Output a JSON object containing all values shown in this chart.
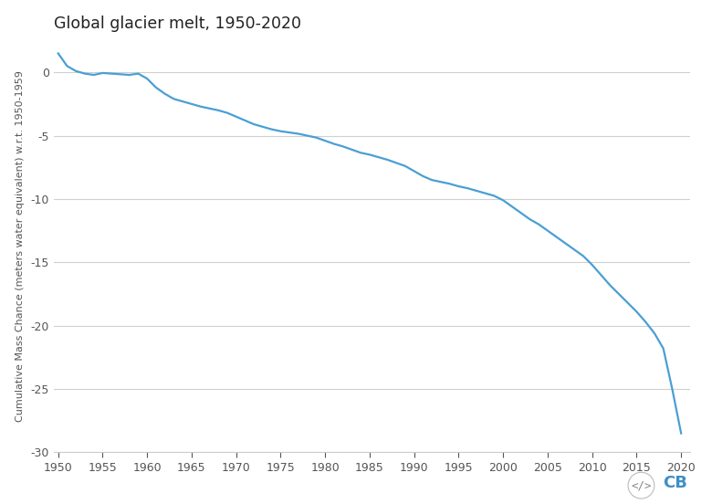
{
  "title": "Global glacier melt, 1950-2020",
  "xlabel": "",
  "ylabel": "Cumulative Mass Chance (meters water equivalent) w.r.t. 1950-1959",
  "line_color": "#4a9fd4",
  "background_color": "#ffffff",
  "grid_color": "#d0d0d0",
  "xlim": [
    1949.5,
    2021
  ],
  "ylim": [
    -30,
    2.5
  ],
  "xticks": [
    1950,
    1955,
    1960,
    1965,
    1970,
    1975,
    1980,
    1985,
    1990,
    1995,
    2000,
    2005,
    2010,
    2015,
    2020
  ],
  "yticks": [
    0,
    -5,
    -10,
    -15,
    -20,
    -25,
    -30
  ],
  "ytick_labels": [
    "0",
    "-5",
    "-10",
    "-15",
    "-20",
    "-25",
    "-30"
  ],
  "years": [
    1950,
    1951,
    1952,
    1953,
    1954,
    1955,
    1956,
    1957,
    1958,
    1959,
    1960,
    1961,
    1962,
    1963,
    1964,
    1965,
    1966,
    1967,
    1968,
    1969,
    1970,
    1971,
    1972,
    1973,
    1974,
    1975,
    1976,
    1977,
    1978,
    1979,
    1980,
    1981,
    1982,
    1983,
    1984,
    1985,
    1986,
    1987,
    1988,
    1989,
    1990,
    1991,
    1992,
    1993,
    1994,
    1995,
    1996,
    1997,
    1998,
    1999,
    2000,
    2001,
    2002,
    2003,
    2004,
    2005,
    2006,
    2007,
    2008,
    2009,
    2010,
    2011,
    2012,
    2013,
    2014,
    2015,
    2016,
    2017,
    2018,
    2019,
    2020
  ],
  "values": [
    1.5,
    0.5,
    0.1,
    -0.1,
    -0.2,
    -0.05,
    -0.1,
    -0.15,
    -0.2,
    -0.1,
    -0.5,
    -1.2,
    -1.7,
    -2.1,
    -2.3,
    -2.5,
    -2.7,
    -2.85,
    -3.0,
    -3.2,
    -3.5,
    -3.8,
    -4.1,
    -4.3,
    -4.5,
    -4.65,
    -4.75,
    -4.85,
    -5.0,
    -5.15,
    -5.4,
    -5.65,
    -5.85,
    -6.1,
    -6.35,
    -6.5,
    -6.7,
    -6.9,
    -7.15,
    -7.4,
    -7.8,
    -8.2,
    -8.5,
    -8.65,
    -8.8,
    -9.0,
    -9.15,
    -9.35,
    -9.55,
    -9.75,
    -10.1,
    -10.6,
    -11.1,
    -11.6,
    -12.0,
    -12.5,
    -13.0,
    -13.5,
    -14.0,
    -14.5,
    -15.2,
    -16.0,
    -16.8,
    -17.5,
    -18.2,
    -18.9,
    -19.7,
    -20.6,
    -21.8,
    -25.0,
    -28.5
  ]
}
